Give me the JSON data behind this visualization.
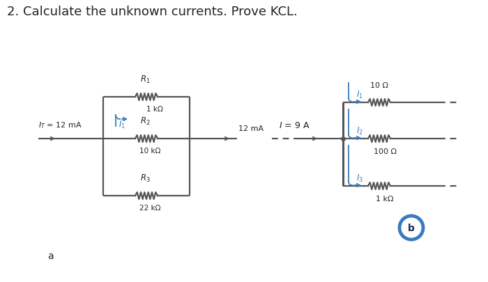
{
  "title": "2. Calculate the unknown currents. Prove KCL.",
  "title_fontsize": 13,
  "bg_color": "#ffffff",
  "text_color": "#222222",
  "blue_color": "#3a7abf",
  "circuit_color": "#555555",
  "label_a": "a",
  "label_b": "b",
  "IT_label": "$I_T$ = 12 mA",
  "I1a_label": "$I_1$",
  "R1_label": "$R_1$",
  "R1_val": "1 kΩ",
  "R2_label": "$R_2$",
  "R2_val": "10 kΩ",
  "R3_label": "$R_3$",
  "R3_val": "22 kΩ",
  "out_label": "12 mA",
  "I_label": "$I$ = 9 A",
  "I1b_label": "$I_1$",
  "I2b_label": "$I_2$",
  "I3b_label": "$I_3$",
  "R10_val": "10 Ω",
  "R100_val": "100 Ω",
  "R1k_val": "1 kΩ"
}
